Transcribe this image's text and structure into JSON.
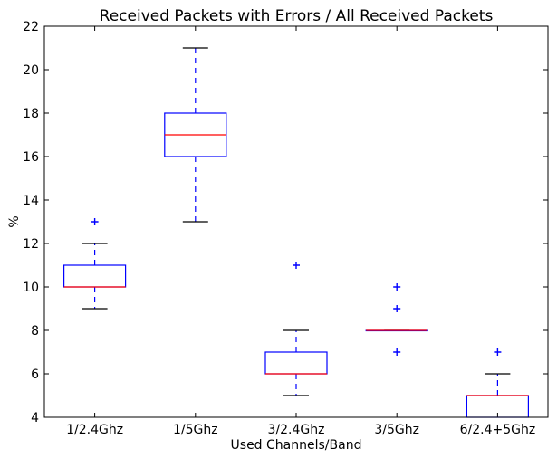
{
  "chart_data": {
    "type": "box",
    "title": "Received Packets with Errors / All Received Packets",
    "xlabel": "Used Channels/Band",
    "ylabel": "%",
    "ylim": [
      4,
      22
    ],
    "yticks": [
      4,
      6,
      8,
      10,
      12,
      14,
      16,
      18,
      20,
      22
    ],
    "grid": false,
    "categories": [
      "1/2.4Ghz",
      "1/5Ghz",
      "3/2.4Ghz",
      "3/5Ghz",
      "6/2.4+5Ghz"
    ],
    "boxes": [
      {
        "whisker_low": 9,
        "q1": 10,
        "median": 10,
        "q3": 11,
        "whisker_high": 12,
        "outliers": [
          13
        ]
      },
      {
        "whisker_low": 13,
        "q1": 16,
        "median": 17,
        "q3": 18,
        "whisker_high": 21,
        "outliers": []
      },
      {
        "whisker_low": 5,
        "q1": 6,
        "median": 6,
        "q3": 7,
        "whisker_high": 8,
        "outliers": [
          11
        ]
      },
      {
        "whisker_low": 8,
        "q1": 8,
        "median": 8,
        "q3": 8,
        "whisker_high": 8,
        "outliers": [
          7,
          9,
          10
        ]
      },
      {
        "whisker_low": 4,
        "q1": 4,
        "median": 5,
        "q3": 5,
        "whisker_high": 6,
        "outliers": [
          7
        ]
      }
    ],
    "colors": {
      "box": "#0000ff",
      "median": "#ff0000",
      "whisker": "#0000ff",
      "cap": "#000000",
      "outlier": "#0000ff"
    }
  }
}
